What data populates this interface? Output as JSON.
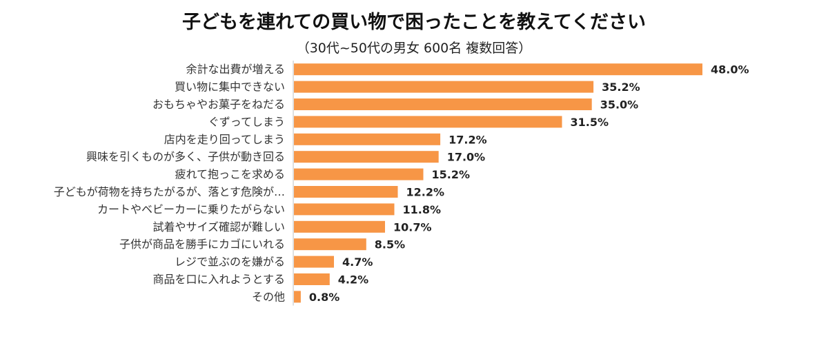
{
  "chart_data": {
    "type": "bar",
    "orientation": "horizontal",
    "title": "子どもを連れての買い物で困ったことを教えてください",
    "subtitle": "（30代~50代の男女 600名 複数回答）",
    "categories": [
      "余計な出費が増える",
      "買い物に集中できない",
      "おもちゃやお菓子をねだる",
      "ぐずってしまう",
      "店内を走り回ってしまう",
      "興味を引くものが多く、子供が動き回る",
      "疲れて抱っこを求める",
      "子どもが荷物を持ちたがるが、落とす危険が…",
      "カートやベビーカーに乗りたがらない",
      "試着やサイズ確認が難しい",
      "子供が商品を勝手にカゴにいれる",
      "レジで並ぶのを嫌がる",
      "商品を口に入れようとする",
      "その他"
    ],
    "values": [
      48.0,
      35.2,
      35.0,
      31.5,
      17.2,
      17.0,
      15.2,
      12.2,
      11.8,
      10.7,
      8.5,
      4.7,
      4.2,
      0.8
    ],
    "value_labels": [
      "48.0%",
      "35.2%",
      "35.0%",
      "31.5%",
      "17.2%",
      "17.0%",
      "15.2%",
      "12.2%",
      "11.8%",
      "10.7%",
      "8.5%",
      "4.7%",
      "4.2%",
      "0.8%"
    ],
    "xlim": [
      0,
      48.0
    ],
    "grid": false,
    "legend": "none",
    "bar_color": "#F79646",
    "axis_color": "#BFBFBF"
  }
}
